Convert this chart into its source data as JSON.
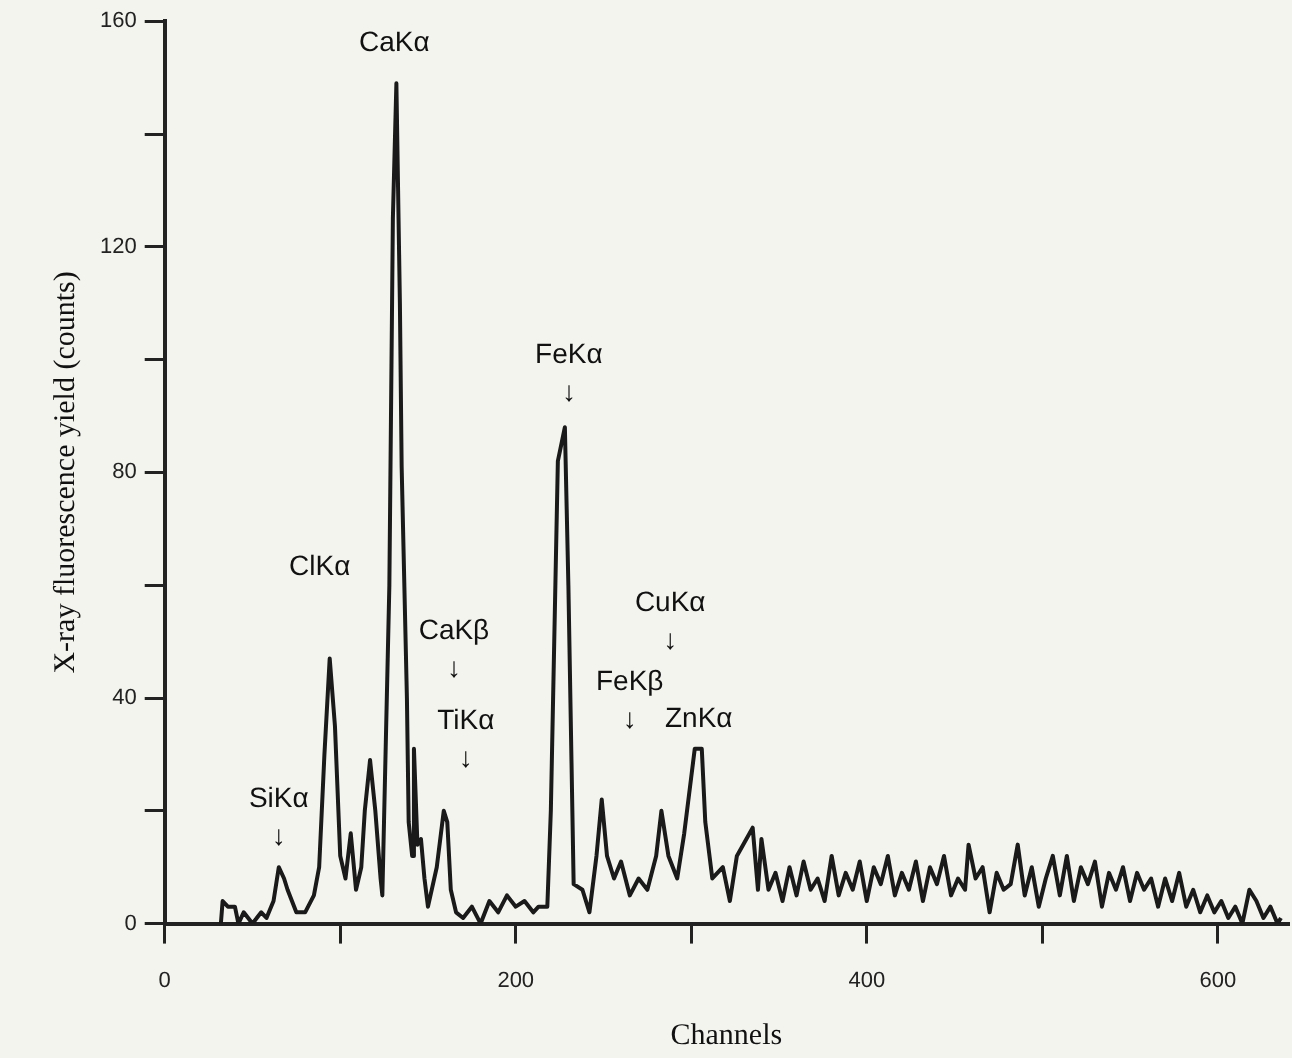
{
  "chart_data": {
    "type": "line",
    "xlabel": "Channels",
    "ylabel": "X-ray fluorescence yield (counts)",
    "color": "#1a1a1a",
    "xlim": [
      0,
      640
    ],
    "ylim": [
      0,
      160
    ],
    "xticks": [
      0,
      {
        "value": 100,
        "label": null
      },
      200,
      {
        "value": 300,
        "label": null
      },
      400,
      {
        "value": 500,
        "label": null
      },
      600
    ],
    "yticks": [
      0,
      {
        "value": 20,
        "label": null
      },
      40,
      {
        "value": 60,
        "label": null
      },
      80,
      {
        "value": 100,
        "label": null
      },
      120,
      {
        "value": 140,
        "label": null
      },
      160
    ],
    "grid": false,
    "legend": false,
    "marker": "none",
    "line_style": "solid",
    "series": [
      {
        "x": [
          32,
          33,
          36,
          40,
          42,
          45,
          50,
          55,
          58,
          62,
          65,
          68,
          70,
          75,
          80,
          85,
          88,
          91,
          94,
          97,
          100,
          103,
          106,
          109,
          112,
          114,
          117,
          120,
          123,
          124,
          128,
          130,
          132,
          134,
          135,
          138,
          139,
          141,
          142,
          144,
          146,
          148,
          150,
          155,
          159,
          161,
          163,
          166,
          170,
          175,
          180,
          185,
          190,
          195,
          200,
          205,
          210,
          213,
          218,
          220,
          224,
          228,
          230,
          233,
          238,
          242,
          246,
          249,
          252,
          256,
          260,
          265,
          270,
          275,
          280,
          283,
          287,
          292,
          296,
          302,
          306,
          308,
          312,
          318,
          322,
          326,
          335,
          338,
          340,
          344,
          348,
          352,
          356,
          360,
          364,
          368,
          372,
          376,
          380,
          384,
          388,
          392,
          396,
          400,
          404,
          408,
          412,
          416,
          420,
          424,
          428,
          432,
          436,
          440,
          444,
          448,
          452,
          456,
          458,
          462,
          466,
          470,
          474,
          478,
          482,
          486,
          490,
          494,
          498,
          502,
          506,
          510,
          514,
          518,
          522,
          526,
          530,
          534,
          538,
          542,
          546,
          550,
          554,
          558,
          562,
          566,
          570,
          574,
          578,
          582,
          586,
          590,
          594,
          598,
          602,
          606,
          610,
          614,
          618,
          622,
          626,
          630,
          634,
          636
        ],
        "values": [
          0,
          4,
          3,
          3,
          0,
          2,
          0,
          2,
          1,
          4,
          10,
          8,
          6,
          2,
          2,
          5,
          10,
          30,
          47,
          35,
          12,
          8,
          16,
          6,
          10,
          20,
          29,
          20,
          8,
          5,
          60,
          125,
          149,
          110,
          81,
          40,
          18,
          12,
          31,
          14,
          15,
          8,
          3,
          10,
          20,
          18,
          6,
          2,
          1,
          3,
          0,
          4,
          2,
          5,
          3,
          4,
          2,
          3,
          3,
          20,
          82,
          88,
          60,
          7,
          6,
          2,
          12,
          22,
          12,
          8,
          11,
          5,
          8,
          6,
          12,
          20,
          12,
          8,
          16,
          31,
          31,
          18,
          8,
          10,
          4,
          12,
          17,
          6,
          15,
          6,
          9,
          4,
          10,
          5,
          11,
          6,
          8,
          4,
          12,
          5,
          9,
          6,
          11,
          4,
          10,
          7,
          12,
          5,
          9,
          6,
          11,
          4,
          10,
          7,
          12,
          5,
          8,
          6,
          14,
          8,
          10,
          2,
          9,
          6,
          7,
          14,
          5,
          10,
          3,
          8,
          12,
          5,
          12,
          4,
          10,
          7,
          11,
          3,
          9,
          6,
          10,
          4,
          9,
          6,
          8,
          3,
          8,
          4,
          9,
          3,
          6,
          2,
          5,
          2,
          4,
          1,
          3,
          0,
          6,
          4,
          1,
          3,
          0,
          1
        ]
      }
    ],
    "annotations": [
      {
        "text": "SiKα\n↓",
        "x": 65,
        "y": 10
      },
      {
        "text": "ClKα",
        "x": 94,
        "y": 47
      },
      {
        "text": "CaKα",
        "x": 132,
        "y": 149
      },
      {
        "text": "CaKβ\n↓",
        "x": 142,
        "y": 31
      },
      {
        "text": "TiKα\n↓",
        "x": 159,
        "y": 20
      },
      {
        "text": "FeKα\n↓",
        "x": 228,
        "y": 88
      },
      {
        "text": "FeKβ\n↓",
        "x": 249,
        "y": 22
      },
      "CuKα\n↓",
      {
        "text": "ZnKα",
        "x": 302,
        "y": 31
      }
    ]
  }
}
